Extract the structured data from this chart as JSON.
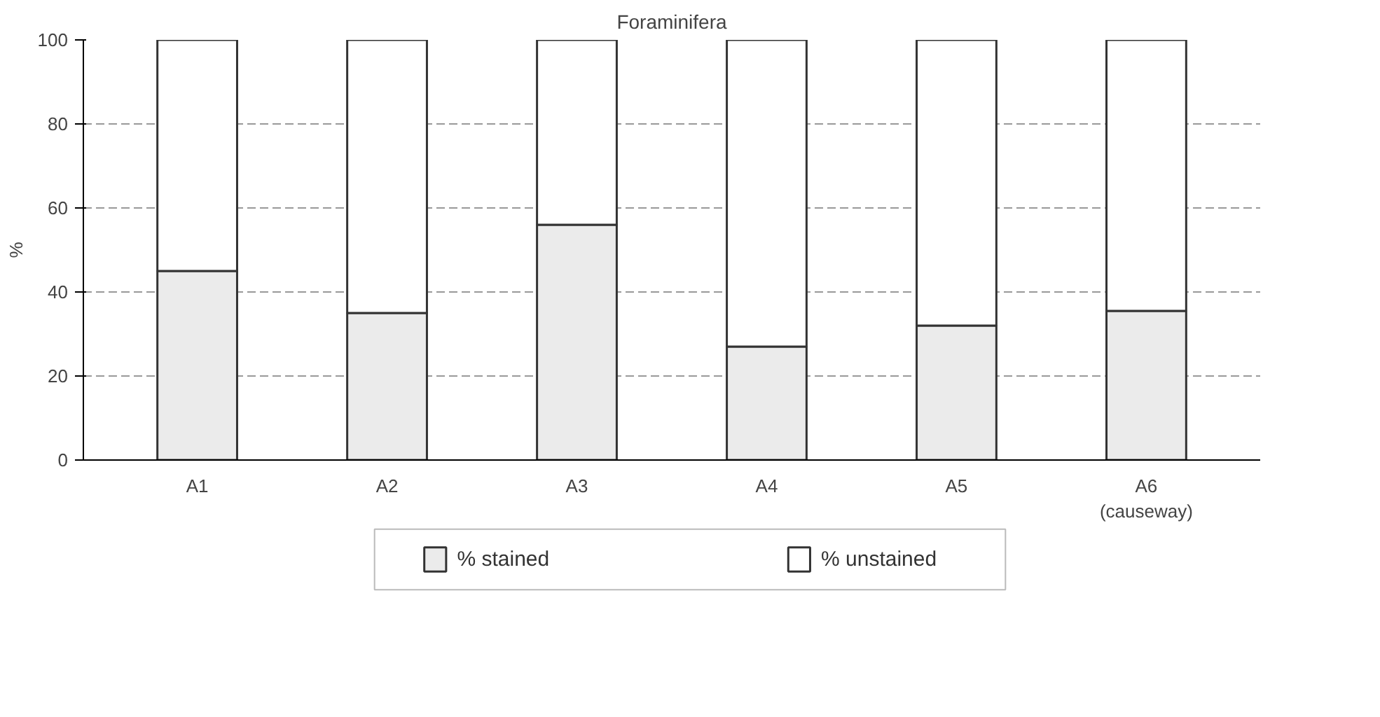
{
  "chart_data": {
    "type": "bar",
    "title": "Foraminifera",
    "ylabel": "%",
    "categories": [
      "A1",
      "A2",
      "A3",
      "A4",
      "A5",
      "A6\n(causeway)"
    ],
    "stacked": true,
    "series": [
      {
        "name": "% stained",
        "color": "#ebebeb",
        "values": [
          45,
          35,
          56,
          27,
          32,
          35.5
        ]
      },
      {
        "name": "% unstained",
        "color": "#ffffff",
        "values": [
          55,
          65,
          44,
          73,
          68,
          64.5
        ]
      }
    ],
    "ylim": [
      0,
      100
    ],
    "yticks": [
      0,
      20,
      40,
      60,
      80,
      100
    ],
    "grid": "y",
    "legend": "bottom"
  }
}
